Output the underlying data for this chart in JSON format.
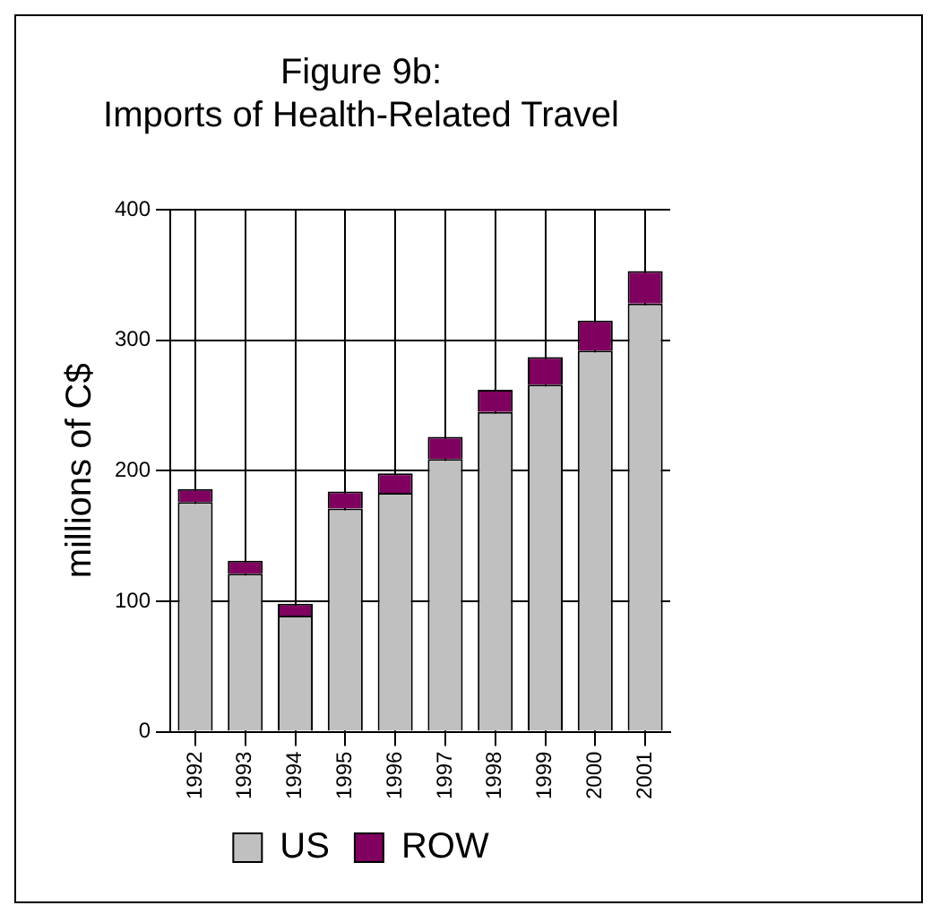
{
  "chart_data": {
    "type": "bar",
    "title": "Figure 9b:\nImports of Health-Related Travel",
    "ylabel": "millions of C$",
    "categories": [
      "1992",
      "1993",
      "1994",
      "1995",
      "1996",
      "1997",
      "1998",
      "1999",
      "2000",
      "2001"
    ],
    "series": [
      {
        "name": "US",
        "color": "#c0c0c0",
        "values": [
          176,
          121,
          89,
          171,
          183,
          209,
          245,
          266,
          292,
          328
        ]
      },
      {
        "name": "ROW",
        "color": "#800060",
        "values": [
          10,
          10,
          9,
          13,
          15,
          17,
          17,
          21,
          23,
          25
        ]
      }
    ],
    "stacked": true,
    "ylim": [
      0,
      400
    ],
    "yticks": [
      0,
      100,
      200,
      300,
      400
    ],
    "grid": true,
    "legend": "bottom"
  }
}
